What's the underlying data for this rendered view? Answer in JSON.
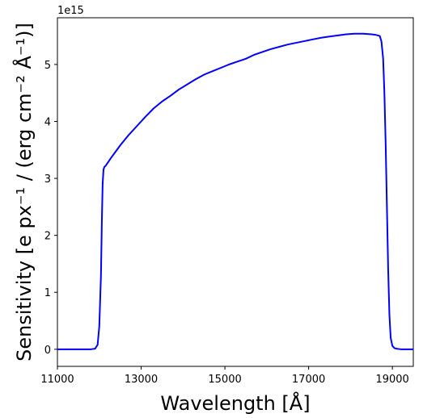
{
  "chart_data": {
    "type": "line",
    "title": "",
    "xlabel": "Wavelength [Å]",
    "ylabel": "Sensitivity [e px⁻¹ / (erg cm⁻² Å⁻¹)]",
    "y_offset_label": "1e15",
    "xlim": [
      11000,
      19500
    ],
    "ylim": [
      -0.3,
      5.82
    ],
    "x_ticks": [
      11000,
      13000,
      15000,
      17000,
      19000
    ],
    "x_tick_labels": [
      "11000",
      "13000",
      "15000",
      "17000",
      "19000"
    ],
    "y_ticks": [
      0,
      1,
      2,
      3,
      4,
      5
    ],
    "y_tick_labels": [
      "0",
      "1",
      "2",
      "3",
      "4",
      "5"
    ],
    "grid": false,
    "series": [
      {
        "color": "#0000ff",
        "x": [
          11000,
          11500,
          11800,
          11900,
          11960,
          12000,
          12040,
          12060,
          12080,
          12100,
          12120,
          12150,
          12300,
          12500,
          12700,
          12900,
          13100,
          13300,
          13500,
          13700,
          13900,
          14100,
          14300,
          14500,
          14700,
          14900,
          15100,
          15300,
          15500,
          15700,
          15900,
          16100,
          16300,
          16500,
          16700,
          16900,
          17100,
          17300,
          17500,
          17700,
          17900,
          18100,
          18300,
          18500,
          18600,
          18700,
          18740,
          18780,
          18810,
          18840,
          18870,
          18900,
          18930,
          18960,
          19000,
          19050,
          19100,
          19200,
          19500
        ],
        "y": [
          0,
          0,
          0,
          0.01,
          0.08,
          0.4,
          1.3,
          2.2,
          2.9,
          3.15,
          3.2,
          3.22,
          3.38,
          3.58,
          3.76,
          3.92,
          4.08,
          4.23,
          4.35,
          4.45,
          4.56,
          4.65,
          4.74,
          4.82,
          4.88,
          4.94,
          5.0,
          5.05,
          5.1,
          5.17,
          5.22,
          5.27,
          5.31,
          5.35,
          5.38,
          5.41,
          5.44,
          5.47,
          5.49,
          5.51,
          5.53,
          5.54,
          5.54,
          5.53,
          5.52,
          5.5,
          5.4,
          5.1,
          4.5,
          3.6,
          2.5,
          1.4,
          0.6,
          0.2,
          0.06,
          0.02,
          0.01,
          0,
          0
        ]
      }
    ]
  }
}
